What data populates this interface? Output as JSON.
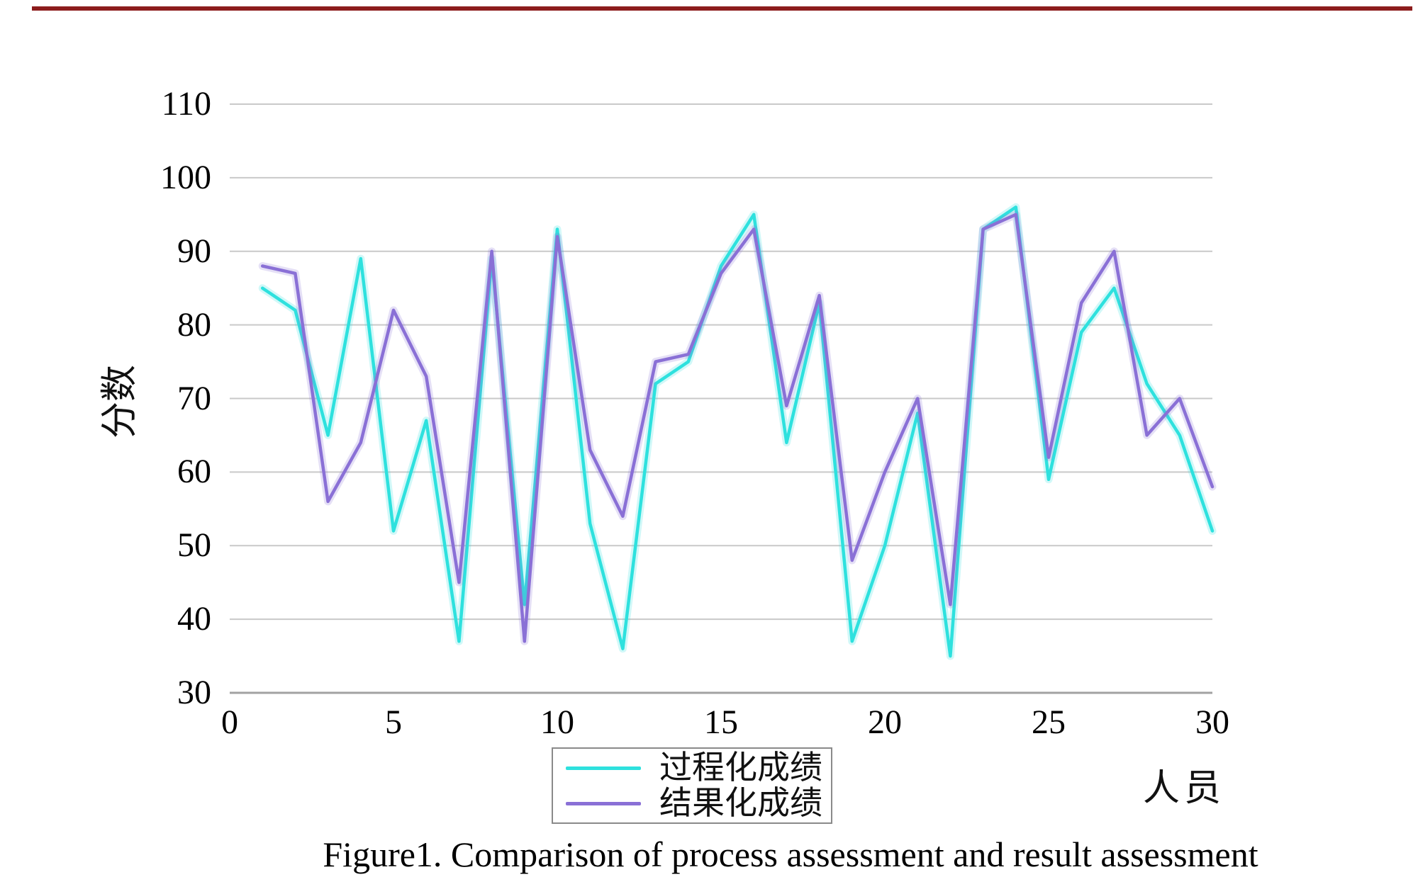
{
  "page": {
    "top_bar_color": "#8c1c1c",
    "caption": "Figure1. Comparison of process assessment and result assessment"
  },
  "chart_data": {
    "type": "line",
    "title": "",
    "xlabel": "人员",
    "ylabel": "分数",
    "xlim": [
      0,
      30
    ],
    "ylim": [
      30,
      110
    ],
    "x_ticks": [
      0,
      5,
      10,
      15,
      20,
      25,
      30
    ],
    "y_ticks": [
      110,
      100,
      90,
      80,
      70,
      60,
      50,
      40,
      30
    ],
    "grid": "horizontal",
    "grid_color": "#c9c9c9",
    "baseline_color": "#a2a2a2",
    "legend_position": "bottom-center",
    "x": [
      1,
      2,
      3,
      4,
      5,
      6,
      7,
      8,
      9,
      10,
      11,
      12,
      13,
      14,
      15,
      16,
      17,
      18,
      19,
      20,
      21,
      22,
      23,
      24,
      25,
      26,
      27,
      28,
      29,
      30
    ],
    "series": [
      {
        "name": "过程化成绩",
        "color": "#2ee1de",
        "values": [
          85,
          82,
          65,
          89,
          52,
          67,
          37,
          89,
          42,
          93,
          53,
          36,
          72,
          75,
          88,
          95,
          64,
          83,
          37,
          50,
          68,
          35,
          93,
          96,
          59,
          79,
          85,
          72,
          65,
          52
        ]
      },
      {
        "name": "结果化成绩",
        "color": "#8a70d6",
        "values": [
          88,
          87,
          56,
          64,
          82,
          73,
          45,
          90,
          37,
          92,
          63,
          54,
          75,
          76,
          87,
          93,
          69,
          84,
          48,
          60,
          70,
          42,
          93,
          95,
          62,
          83,
          90,
          65,
          70,
          58
        ]
      }
    ]
  }
}
